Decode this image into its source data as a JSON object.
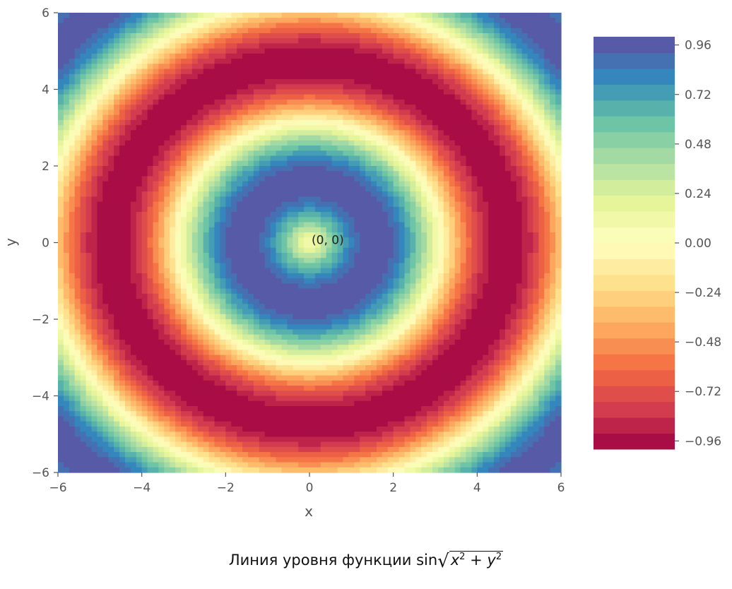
{
  "chart_data": {
    "type": "heatmap",
    "subtype": "filled-contour",
    "function": "sin(sqrt(x^2 + y^2))",
    "xlabel": "x",
    "ylabel": "y",
    "xlim": [
      -6,
      6
    ],
    "ylim": [
      -6,
      6
    ],
    "xticks": [
      "−6",
      "−4",
      "−2",
      "0",
      "2",
      "4",
      "6"
    ],
    "yticks": [
      "−6",
      "−4",
      "−2",
      "0",
      "2",
      "4",
      "6"
    ],
    "xtick_values": [
      -6,
      -4,
      -2,
      0,
      2,
      4,
      6
    ],
    "ytick_values": [
      -6,
      -4,
      -2,
      0,
      2,
      4,
      6
    ],
    "colormap": "Spectral",
    "levels": 26,
    "value_range": [
      -1,
      1
    ],
    "colorbar": {
      "ticks": [
        "0.96",
        "0.72",
        "0.48",
        "0.24",
        "0.00",
        "−0.24",
        "−0.48",
        "−0.72",
        "−0.96"
      ],
      "tick_values": [
        0.96,
        0.72,
        0.48,
        0.24,
        0.0,
        -0.24,
        -0.48,
        -0.72,
        -0.96
      ],
      "placement": "right"
    },
    "annotation": {
      "text": "(0, 0)",
      "x": 0,
      "y": 0
    },
    "grid": false,
    "colors": {
      "stops": [
        "#9e0142",
        "#d53e4f",
        "#f46d43",
        "#fdae61",
        "#fee08b",
        "#ffffbf",
        "#e6f598",
        "#abdda4",
        "#66c2a5",
        "#3288bd",
        "#5e4fa2"
      ]
    }
  },
  "caption": {
    "prefix": "Линия уровня функции sin",
    "x": "x",
    "plus": " + ",
    "y": "y",
    "exp": "2"
  }
}
